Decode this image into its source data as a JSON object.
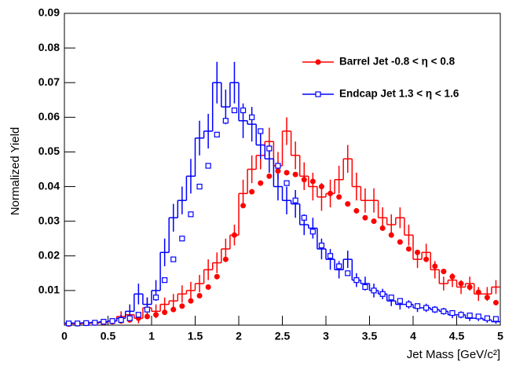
{
  "chart_data": {
    "type": "histogram",
    "x_label": "Jet Mass [GeV/c²]",
    "y_label": "Normalized Yield",
    "bins": [
      0,
      0.1,
      0.2,
      0.3,
      0.4,
      0.5,
      0.6,
      0.7,
      0.8,
      0.9,
      1,
      1.1,
      1.2,
      1.3,
      1.4,
      1.5,
      1.6,
      1.7,
      1.8,
      1.9,
      2,
      2.1,
      2.2,
      2.3,
      2.4,
      2.5,
      2.6,
      2.7,
      2.8,
      2.9,
      3,
      3.1,
      3.2,
      3.3,
      3.4,
      3.5,
      3.6,
      3.7,
      3.8,
      3.9,
      4,
      4.1,
      4.2,
      4.3,
      4.4,
      4.5,
      4.6,
      4.7,
      4.8,
      4.9,
      5
    ],
    "xlim": [
      0,
      5
    ],
    "xticks": [
      0,
      0.5,
      1,
      1.5,
      2,
      2.5,
      3,
      3.5,
      4,
      4.5,
      5
    ],
    "ylim": [
      0,
      0.09
    ],
    "yticks": [
      0.01,
      0.02,
      0.03,
      0.04,
      0.05,
      0.06,
      0.07,
      0.08,
      0.09
    ],
    "series": [
      {
        "name": "Barrel Jet -0.8 < η < 0.8",
        "color": "#ff0000",
        "marker": "circle",
        "values": [
          0.0003,
          0.0004,
          0.0005,
          0.0006,
          0.0008,
          0.001,
          0.0012,
          0.0015,
          0.002,
          0.0025,
          0.003,
          0.0037,
          0.0045,
          0.0055,
          0.007,
          0.0085,
          0.011,
          0.014,
          0.019,
          0.026,
          0.0345,
          0.0385,
          0.041,
          0.043,
          0.0445,
          0.044,
          0.0435,
          0.042,
          0.0415,
          0.04,
          0.038,
          0.037,
          0.035,
          0.033,
          0.031,
          0.03,
          0.028,
          0.026,
          0.024,
          0.022,
          0.021,
          0.019,
          0.017,
          0.0155,
          0.014,
          0.012,
          0.011,
          0.0095,
          0.008,
          0.0065
        ]
      },
      {
        "name": "Endcap Jet 1.3 < η < 1.6",
        "color": "#0000ff",
        "marker": "open-square",
        "values": [
          0.0005,
          0.0005,
          0.0006,
          0.0007,
          0.001,
          0.0012,
          0.0015,
          0.002,
          0.003,
          0.0045,
          0.008,
          0.013,
          0.019,
          0.025,
          0.032,
          0.04,
          0.046,
          0.055,
          0.059,
          0.062,
          0.062,
          0.06,
          0.056,
          0.051,
          0.046,
          0.041,
          0.036,
          0.031,
          0.027,
          0.023,
          0.02,
          0.017,
          0.015,
          0.013,
          0.011,
          0.01,
          0.009,
          0.008,
          0.007,
          0.006,
          0.0055,
          0.005,
          0.0045,
          0.004,
          0.0035,
          0.003,
          0.0028,
          0.0025,
          0.002,
          0.0018
        ]
      }
    ],
    "histograms": [
      {
        "color": "#ff0000",
        "values": [
          0.0004,
          0.0004,
          0.0005,
          0.0006,
          0.0008,
          0.0012,
          0.0025,
          0.003,
          0.002,
          0.005,
          0.004,
          0.006,
          0.007,
          0.009,
          0.01,
          0.012,
          0.016,
          0.018,
          0.022,
          0.026,
          0.038,
          0.045,
          0.049,
          0.053,
          0.046,
          0.056,
          0.049,
          0.043,
          0.04,
          0.037,
          0.038,
          0.042,
          0.048,
          0.04,
          0.036,
          0.036,
          0.031,
          0.029,
          0.031,
          0.026,
          0.019,
          0.021,
          0.016,
          0.012,
          0.013,
          0.011,
          0.012,
          0.009,
          0.009,
          0.011
        ],
        "errors": [
          0.0003,
          0.0003,
          0.0003,
          0.0004,
          0.0005,
          0.0008,
          0.0015,
          0.002,
          0.0015,
          0.003,
          0.002,
          0.002,
          0.002,
          0.0025,
          0.0025,
          0.0025,
          0.003,
          0.003,
          0.003,
          0.003,
          0.004,
          0.004,
          0.004,
          0.004,
          0.004,
          0.004,
          0.004,
          0.004,
          0.004,
          0.004,
          0.004,
          0.004,
          0.004,
          0.004,
          0.0035,
          0.0035,
          0.003,
          0.003,
          0.003,
          0.003,
          0.0025,
          0.0025,
          0.0025,
          0.002,
          0.002,
          0.002,
          0.002,
          0.002,
          0.002,
          0.002
        ]
      },
      {
        "color": "#0000ff",
        "values": [
          0.0006,
          0.0006,
          0.0007,
          0.0008,
          0.001,
          0.0012,
          0.002,
          0.004,
          0.009,
          0.006,
          0.01,
          0.021,
          0.031,
          0.036,
          0.043,
          0.054,
          0.056,
          0.07,
          0.063,
          0.07,
          0.059,
          0.058,
          0.052,
          0.048,
          0.04,
          0.036,
          0.035,
          0.029,
          0.028,
          0.022,
          0.019,
          0.016,
          0.019,
          0.013,
          0.012,
          0.01,
          0.009,
          0.007,
          0.006,
          0.006,
          0.005,
          0.005,
          0.0045,
          0.004,
          0.003,
          0.003,
          0.002,
          0.002,
          0.0015,
          0.001
        ],
        "errors": [
          0.0003,
          0.0003,
          0.0003,
          0.0004,
          0.0005,
          0.0006,
          0.001,
          0.002,
          0.003,
          0.002,
          0.003,
          0.004,
          0.004,
          0.004,
          0.005,
          0.005,
          0.005,
          0.006,
          0.005,
          0.006,
          0.005,
          0.005,
          0.004,
          0.004,
          0.004,
          0.004,
          0.004,
          0.003,
          0.003,
          0.003,
          0.003,
          0.0025,
          0.0025,
          0.002,
          0.002,
          0.002,
          0.0015,
          0.0015,
          0.0015,
          0.0012,
          0.0012,
          0.0012,
          0.001,
          0.001,
          0.001,
          0.001,
          0.0008,
          0.0008,
          0.0008,
          0.0006
        ]
      }
    ],
    "legend": "upper-right",
    "grid": false
  }
}
